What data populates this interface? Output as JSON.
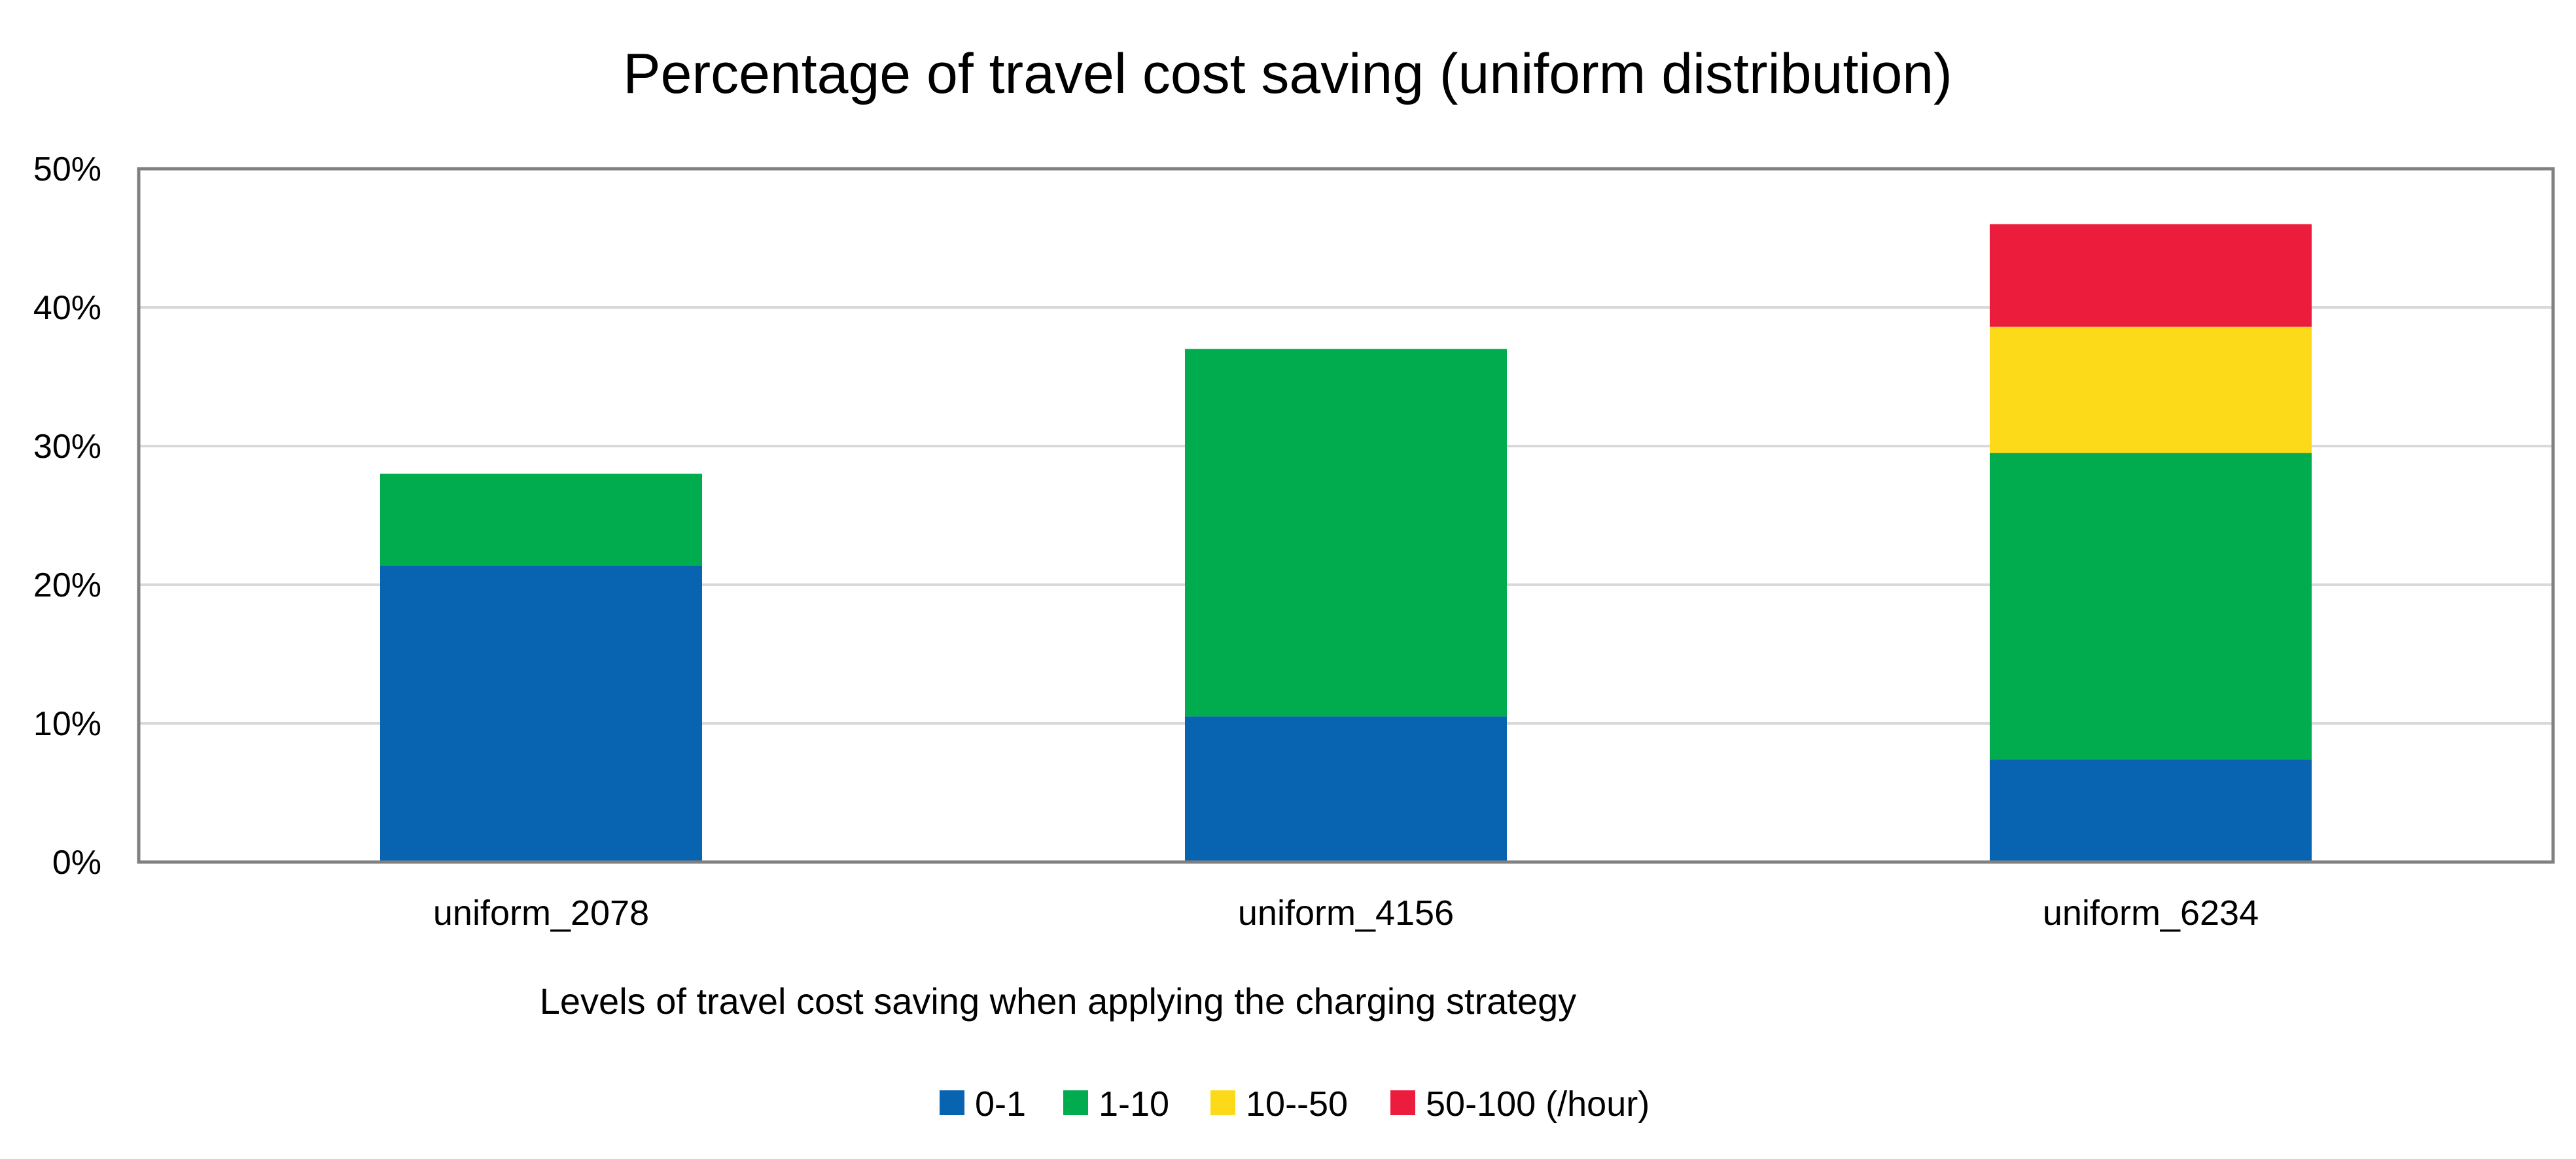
{
  "chart_data": {
    "type": "bar",
    "stacked": true,
    "title": "Percentage of travel cost saving (uniform distribution)",
    "xlabel": "Levels of travel cost saving when applying the charging strategy",
    "ylabel": "",
    "ylim": [
      0,
      50
    ],
    "y_tick_values": [
      0,
      10,
      20,
      30,
      40,
      50
    ],
    "y_tick_labels": [
      "0%",
      "10%",
      "20%",
      "30%",
      "40%",
      "50%"
    ],
    "grid": true,
    "legend_position": "bottom",
    "categories": [
      "uniform_2078",
      "uniform_4156",
      "uniform_6234"
    ],
    "series": [
      {
        "name": "0-1",
        "color": "#0864B1",
        "values": [
          21.4,
          10.5,
          7.4
        ]
      },
      {
        "name": "1-10",
        "color": "#00AC4E",
        "values": [
          6.6,
          26.5,
          22.1
        ]
      },
      {
        "name": "10--50",
        "color": "#FCDA1A",
        "values": [
          0,
          0,
          9.1
        ]
      },
      {
        "name": "50-100 (/hour)",
        "color": "#EB1C3C",
        "values": [
          0,
          0,
          7.4
        ]
      }
    ]
  }
}
